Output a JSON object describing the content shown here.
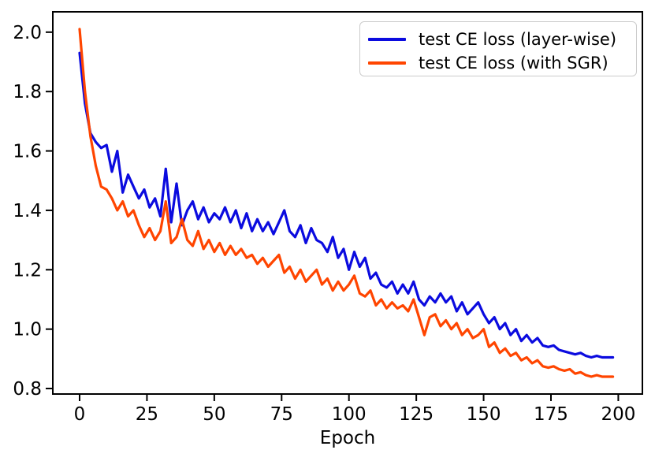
{
  "chart_data": {
    "type": "line",
    "title": "",
    "xlabel": "Epoch",
    "ylabel": "",
    "grid": false,
    "legend_position": "upper right",
    "xlim": [
      -9.95,
      208.95
    ],
    "ylim": [
      0.7815,
      2.0685
    ],
    "x_start": 0,
    "x_step": 2,
    "xticks": {
      "values": [
        0,
        25,
        50,
        75,
        100,
        125,
        150,
        175,
        200
      ],
      "labels": [
        "0",
        "25",
        "50",
        "75",
        "100",
        "125",
        "150",
        "175",
        "200"
      ]
    },
    "yticks": {
      "values": [
        0.8,
        1.0,
        1.2,
        1.4,
        1.6,
        1.8,
        2.0
      ],
      "labels": [
        "0.8",
        "1.0",
        "1.2",
        "1.4",
        "1.6",
        "1.8",
        "2.0"
      ]
    },
    "series": [
      {
        "name": "test CE loss (layer-wise)",
        "color": "#0b0bdf",
        "values": [
          1.93,
          1.76,
          1.66,
          1.63,
          1.61,
          1.62,
          1.53,
          1.6,
          1.46,
          1.52,
          1.48,
          1.44,
          1.47,
          1.41,
          1.44,
          1.38,
          1.54,
          1.36,
          1.49,
          1.35,
          1.4,
          1.43,
          1.37,
          1.41,
          1.36,
          1.39,
          1.37,
          1.41,
          1.36,
          1.4,
          1.34,
          1.39,
          1.33,
          1.37,
          1.33,
          1.36,
          1.32,
          1.36,
          1.4,
          1.33,
          1.31,
          1.35,
          1.29,
          1.34,
          1.3,
          1.29,
          1.26,
          1.31,
          1.24,
          1.27,
          1.2,
          1.26,
          1.21,
          1.24,
          1.17,
          1.19,
          1.15,
          1.14,
          1.16,
          1.12,
          1.15,
          1.12,
          1.16,
          1.1,
          1.08,
          1.11,
          1.09,
          1.12,
          1.09,
          1.11,
          1.06,
          1.09,
          1.05,
          1.07,
          1.09,
          1.05,
          1.02,
          1.04,
          1.0,
          1.02,
          0.98,
          1.0,
          0.96,
          0.98,
          0.955,
          0.97,
          0.945,
          0.94,
          0.945,
          0.93,
          0.925,
          0.92,
          0.915,
          0.92,
          0.91,
          0.905,
          0.91,
          0.905,
          0.905,
          0.905
        ]
      },
      {
        "name": "test CE loss (with SGR)",
        "color": "#ff4500",
        "values": [
          2.01,
          1.8,
          1.65,
          1.55,
          1.48,
          1.47,
          1.44,
          1.4,
          1.43,
          1.38,
          1.4,
          1.35,
          1.31,
          1.34,
          1.3,
          1.33,
          1.43,
          1.29,
          1.31,
          1.37,
          1.3,
          1.28,
          1.33,
          1.27,
          1.3,
          1.26,
          1.29,
          1.25,
          1.28,
          1.25,
          1.27,
          1.24,
          1.25,
          1.22,
          1.24,
          1.21,
          1.23,
          1.25,
          1.19,
          1.21,
          1.17,
          1.2,
          1.16,
          1.18,
          1.2,
          1.15,
          1.17,
          1.13,
          1.16,
          1.13,
          1.15,
          1.18,
          1.12,
          1.11,
          1.13,
          1.08,
          1.1,
          1.07,
          1.09,
          1.07,
          1.08,
          1.06,
          1.1,
          1.04,
          0.98,
          1.04,
          1.05,
          1.01,
          1.03,
          1.0,
          1.02,
          0.98,
          1.0,
          0.97,
          0.98,
          1.0,
          0.94,
          0.955,
          0.92,
          0.935,
          0.91,
          0.92,
          0.895,
          0.905,
          0.885,
          0.895,
          0.875,
          0.87,
          0.875,
          0.865,
          0.86,
          0.865,
          0.85,
          0.855,
          0.845,
          0.84,
          0.845,
          0.84,
          0.84,
          0.84
        ]
      }
    ]
  }
}
